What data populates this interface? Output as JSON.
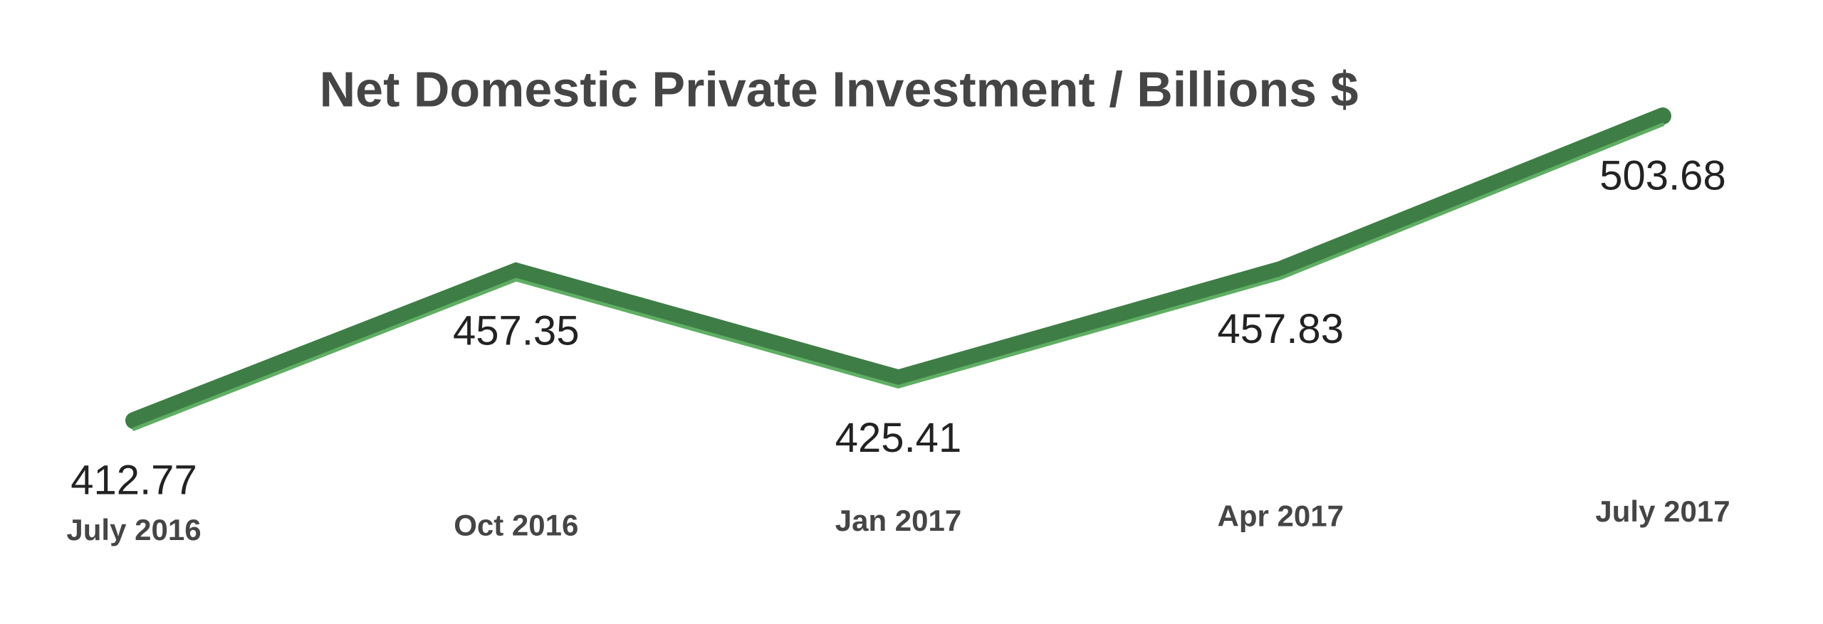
{
  "chart_data": {
    "type": "line",
    "title": "Net Domestic Private Investment / Billions $",
    "categories": [
      "July 2016",
      "Oct 2016",
      "Jan 2017",
      "Apr 2017",
      "July 2017"
    ],
    "values": [
      412.77,
      457.35,
      425.41,
      457.83,
      503.68
    ],
    "color": "#3f7d46"
  }
}
